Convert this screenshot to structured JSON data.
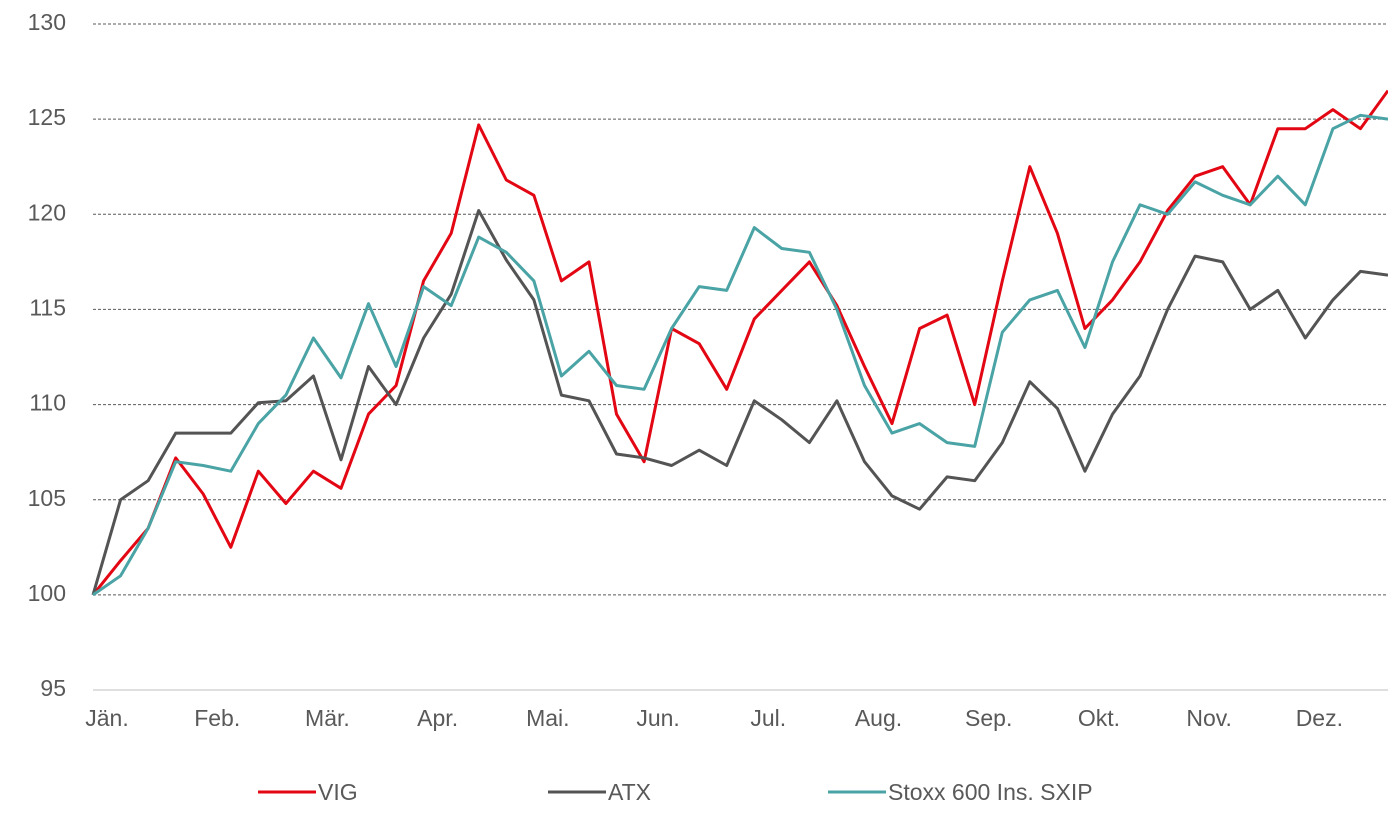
{
  "chart_data": {
    "type": "line",
    "categories": [
      "Jän.",
      null,
      null,
      null,
      "Feb.",
      null,
      null,
      null,
      "Mär.",
      null,
      null,
      null,
      "Apr.",
      null,
      null,
      null,
      "Mai.",
      null,
      null,
      null,
      "Jun.",
      null,
      null,
      null,
      "Jul.",
      null,
      null,
      null,
      "Aug.",
      null,
      null,
      null,
      "Sep.",
      null,
      null,
      null,
      "Okt.",
      null,
      null,
      null,
      "Nov.",
      null,
      null,
      null,
      "Dez.",
      null,
      null,
      null
    ],
    "series": [
      {
        "name": "VIG",
        "color": "#e30613",
        "values": [
          100,
          101.8,
          103.5,
          107.2,
          105.3,
          102.5,
          106.5,
          104.8,
          106.5,
          105.6,
          109.5,
          111.0,
          116.5,
          119.0,
          124.7,
          121.8,
          121.0,
          116.5,
          117.5,
          109.5,
          107.0,
          114.0,
          113.2,
          110.8,
          114.5,
          116.0,
          117.5,
          115.2,
          112.0,
          109.0,
          114.0,
          114.7,
          110.0,
          116.5,
          122.5,
          119.0,
          114.0,
          115.5,
          117.5,
          120.2,
          122.0,
          122.5,
          120.5,
          124.5,
          124.5,
          125.5,
          124.5,
          126.5
        ]
      },
      {
        "name": "ATX",
        "color": "#545454",
        "values": [
          100,
          105.0,
          106.0,
          108.5,
          108.5,
          108.5,
          110.1,
          110.2,
          111.5,
          107.1,
          112.0,
          110.0,
          113.5,
          115.8,
          120.2,
          117.6,
          115.5,
          110.5,
          110.2,
          107.4,
          107.2,
          106.8,
          107.6,
          106.8,
          110.2,
          109.2,
          108.0,
          110.2,
          107.0,
          105.2,
          104.5,
          106.2,
          106.0,
          108.0,
          111.2,
          109.8,
          106.5,
          109.5,
          111.5,
          115.0,
          117.8,
          117.5,
          115.0,
          116.0,
          113.5,
          115.5,
          117.0,
          116.8
        ]
      },
      {
        "name": "Stoxx 600 Ins. SXIP",
        "color": "#4aa3a5",
        "values": [
          100,
          101.0,
          103.5,
          107.0,
          106.8,
          106.5,
          109.0,
          110.5,
          113.5,
          111.4,
          115.3,
          112.0,
          116.2,
          115.2,
          118.8,
          118.0,
          116.5,
          111.5,
          112.8,
          111.0,
          110.8,
          114.0,
          116.2,
          116.0,
          119.3,
          118.2,
          118.0,
          115.0,
          111.0,
          108.5,
          109.0,
          108.0,
          107.8,
          113.8,
          115.5,
          116.0,
          113.0,
          117.5,
          120.5,
          120.0,
          121.7,
          121.0,
          120.5,
          122.0,
          120.5,
          124.5,
          125.2,
          125.0
        ]
      }
    ],
    "ylim": [
      95,
      130
    ],
    "yticks": [
      95,
      100,
      105,
      110,
      115,
      120,
      125,
      130
    ],
    "grid": true,
    "legend": "bottom"
  }
}
